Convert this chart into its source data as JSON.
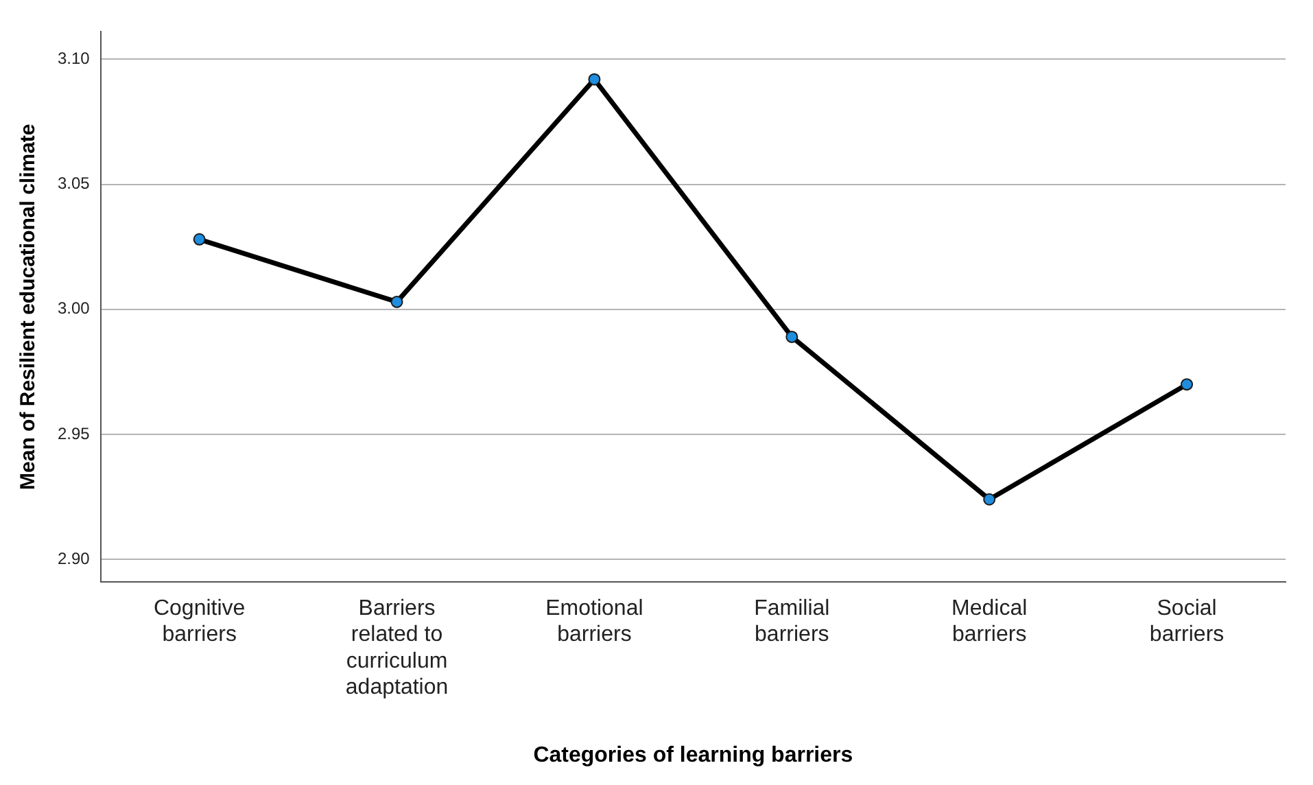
{
  "chart_data": {
    "type": "line",
    "xlabel": "Categories of learning barriers",
    "ylabel": "Mean of Resilient educational climate",
    "categories": [
      "Cognitive barriers",
      "Barriers related to curriculum adaptation",
      "Emotional barriers",
      "Familial barriers",
      "Medical barriers",
      "Social barriers"
    ],
    "series": [
      {
        "color": "#000000",
        "values": [
          3.028,
          3.003,
          3.092,
          2.989,
          2.924,
          2.97
        ]
      }
    ],
    "ylim": [
      2.891,
      3.111
    ],
    "yticks": [
      {
        "value": 2.9,
        "label": "2.90"
      },
      {
        "value": 2.95,
        "label": "2.95"
      },
      {
        "value": 3.0,
        "label": "3.00"
      },
      {
        "value": 3.05,
        "label": "3.05"
      },
      {
        "value": 3.1,
        "label": "3.10"
      }
    ],
    "grid": "y",
    "legend": false,
    "marker": "circle",
    "line_style": "solid"
  }
}
